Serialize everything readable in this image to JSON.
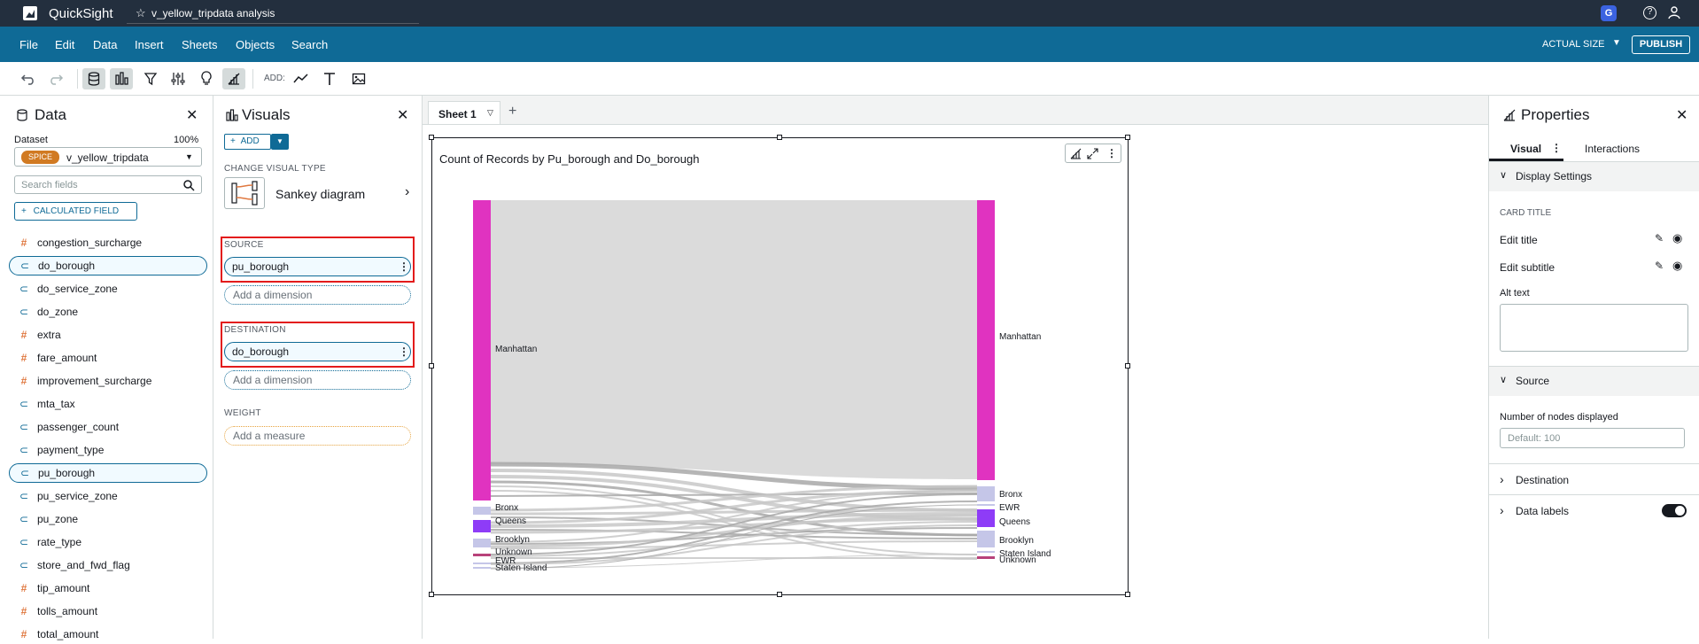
{
  "app": {
    "name": "QuickSight",
    "analysis_title": "v_yellow_tripdata analysis",
    "avatar_letter": "G"
  },
  "menu": {
    "items": [
      "File",
      "Edit",
      "Data",
      "Insert",
      "Sheets",
      "Objects",
      "Search"
    ],
    "actual_size": "ACTUAL SIZE",
    "publish": "PUBLISH"
  },
  "toolbar": {
    "add_label": "ADD:"
  },
  "data_panel": {
    "title": "Data",
    "dataset_label": "Dataset",
    "dataset_pct": "100%",
    "spice_badge": "SPICE",
    "dataset_name": "v_yellow_tripdata",
    "search_placeholder": "Search fields",
    "calc_field_btn": "CALCULATED FIELD",
    "fields": [
      {
        "name": "congestion_surcharge",
        "type": "measure",
        "selected": false
      },
      {
        "name": "do_borough",
        "type": "dimension",
        "selected": true
      },
      {
        "name": "do_service_zone",
        "type": "dimension",
        "selected": false
      },
      {
        "name": "do_zone",
        "type": "dimension",
        "selected": false
      },
      {
        "name": "extra",
        "type": "measure",
        "selected": false
      },
      {
        "name": "fare_amount",
        "type": "measure",
        "selected": false
      },
      {
        "name": "improvement_surcharge",
        "type": "measure",
        "selected": false
      },
      {
        "name": "mta_tax",
        "type": "dimension",
        "selected": false
      },
      {
        "name": "passenger_count",
        "type": "dimension",
        "selected": false
      },
      {
        "name": "payment_type",
        "type": "dimension",
        "selected": false
      },
      {
        "name": "pu_borough",
        "type": "dimension",
        "selected": true
      },
      {
        "name": "pu_service_zone",
        "type": "dimension",
        "selected": false
      },
      {
        "name": "pu_zone",
        "type": "dimension",
        "selected": false
      },
      {
        "name": "rate_type",
        "type": "dimension",
        "selected": false
      },
      {
        "name": "store_and_fwd_flag",
        "type": "dimension",
        "selected": false
      },
      {
        "name": "tip_amount",
        "type": "measure",
        "selected": false
      },
      {
        "name": "tolls_amount",
        "type": "measure",
        "selected": false
      },
      {
        "name": "total_amount",
        "type": "measure",
        "selected": false
      }
    ]
  },
  "visuals_panel": {
    "title": "Visuals",
    "add_btn": "ADD",
    "change_type_label": "CHANGE VISUAL TYPE",
    "visual_type": "Sankey diagram",
    "source_label": "SOURCE",
    "source_value": "pu_borough",
    "destination_label": "DESTINATION",
    "destination_value": "do_borough",
    "weight_label": "WEIGHT",
    "add_dimension": "Add a dimension",
    "add_measure": "Add a measure"
  },
  "sheet": {
    "tab": "Sheet 1"
  },
  "chart_data": {
    "type": "sankey",
    "title": "Count of Records by Pu_borough and Do_borough",
    "source_nodes": [
      "Manhattan",
      "Bronx",
      "Queens",
      "Brooklyn",
      "Unknown",
      "EWR",
      "Staten Island"
    ],
    "destination_nodes": [
      "Manhattan",
      "Bronx",
      "EWR",
      "Queens",
      "Brooklyn",
      "Staten Island",
      "Unknown"
    ],
    "colors": {
      "manhattan": "#e033c0",
      "queens": "#8e3cf7",
      "light": "#c5c6e8",
      "unknown": "#b8427a",
      "link": "#d9d9d9"
    }
  },
  "properties_panel": {
    "title": "Properties",
    "tabs": [
      "Visual",
      "Interactions"
    ],
    "display_settings": "Display Settings",
    "card_title": "CARD TITLE",
    "edit_title": "Edit title",
    "edit_subtitle": "Edit subtitle",
    "alt_text": "Alt text",
    "source_section": "Source",
    "nodes_label": "Number of nodes displayed",
    "nodes_placeholder": "Default: 100",
    "destination_section": "Destination",
    "data_labels": "Data labels"
  }
}
